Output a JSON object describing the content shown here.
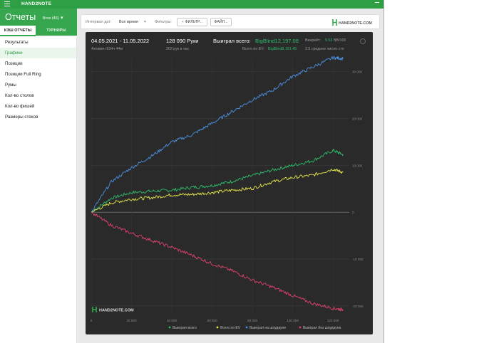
{
  "app": {
    "name": "HAND2NOTE"
  },
  "header": {
    "title": "Отчеты",
    "player": "Bros (46)"
  },
  "subtabs": [
    "КЭШ ОТЧЕТЫ",
    "ТУРНИРЫ"
  ],
  "sidebar": {
    "items": [
      {
        "label": "Результаты",
        "active": false
      },
      {
        "label": "Графики",
        "active": true
      },
      {
        "label": "Позиции",
        "active": false
      },
      {
        "label": "Позиции Full Ring",
        "active": false
      },
      {
        "label": "Румы",
        "active": false
      },
      {
        "label": "Кол-во столов",
        "active": false
      },
      {
        "label": "Кол-во фишей",
        "active": false
      },
      {
        "label": "Размеры стеков",
        "active": false
      }
    ]
  },
  "filters": {
    "date_label": "Интервал дат:",
    "date_value": "Все время",
    "filters_label": "Фильтры:",
    "add_filter": "ФИЛЬТР...",
    "file_button": "ФАЙЛ...",
    "logo": "HAND2NOTE.COM"
  },
  "summary": {
    "date_range": "04.05.2021 - 11.05.2022",
    "active_time": "Активен 634ч 44м",
    "hands": "128 090 Руки",
    "hands_per_hour": "202 рук в час",
    "won_label": "Выиграл всего:",
    "won_value": "BigBlind12,197.08",
    "ev_label": "Всего по EV:",
    "ev_value": "BigBlind8,191.45",
    "winrate_label": "Винрейт:",
    "winrate_value": "9.52",
    "winrate_suffix": "BB/100",
    "tables_note": "2.5 среднее число сто"
  },
  "watermark": "HAND2NOTE.COM",
  "colors": {
    "total": "#4a90e2",
    "showdown": "#2ebd6b",
    "ev": "#e8e84a",
    "nonshowdown": "#e0426d",
    "brand": "#36a64f"
  },
  "chart_data": {
    "type": "line",
    "x_ticks": [
      "0",
      "20 000",
      "40 000",
      "60 000",
      "80 000",
      "100 000",
      "120 000"
    ],
    "y_ticks": [
      "30 000",
      "20 000",
      "10 000",
      "0",
      "-10 000",
      "-20 000"
    ],
    "xlim": [
      0,
      128090
    ],
    "ylim": [
      -22000,
      33000
    ],
    "grid": true,
    "legend_position": "bottom-right",
    "x": [
      0,
      10000,
      20000,
      30000,
      40000,
      50000,
      60000,
      70000,
      80000,
      90000,
      100000,
      110000,
      120000,
      125000
    ],
    "series": [
      {
        "name": "Выиграл всего",
        "color_key": "showdown",
        "values": [
          0,
          3000,
          4200,
          4500,
          4700,
          5300,
          5700,
          6600,
          7800,
          9000,
          10000,
          11000,
          13200,
          12300
        ]
      },
      {
        "name": "Всего по EV",
        "color_key": "ev",
        "values": [
          0,
          2000,
          2800,
          3100,
          3700,
          3800,
          4200,
          4700,
          5100,
          6500,
          7400,
          7900,
          9200,
          8500
        ]
      },
      {
        "name": "Выиграл на шоудауне",
        "color_key": "total",
        "values": [
          0,
          6500,
          9500,
          12000,
          15000,
          16500,
          19000,
          21500,
          24000,
          26000,
          29000,
          31000,
          33000,
          32800
        ]
      },
      {
        "name": "Выиграл без шоудауна",
        "color_key": "nonshowdown",
        "values": [
          0,
          -2800,
          -4500,
          -6000,
          -7500,
          -9200,
          -11000,
          -12500,
          -14500,
          -16000,
          -17800,
          -19500,
          -20500,
          -20800
        ]
      }
    ]
  }
}
